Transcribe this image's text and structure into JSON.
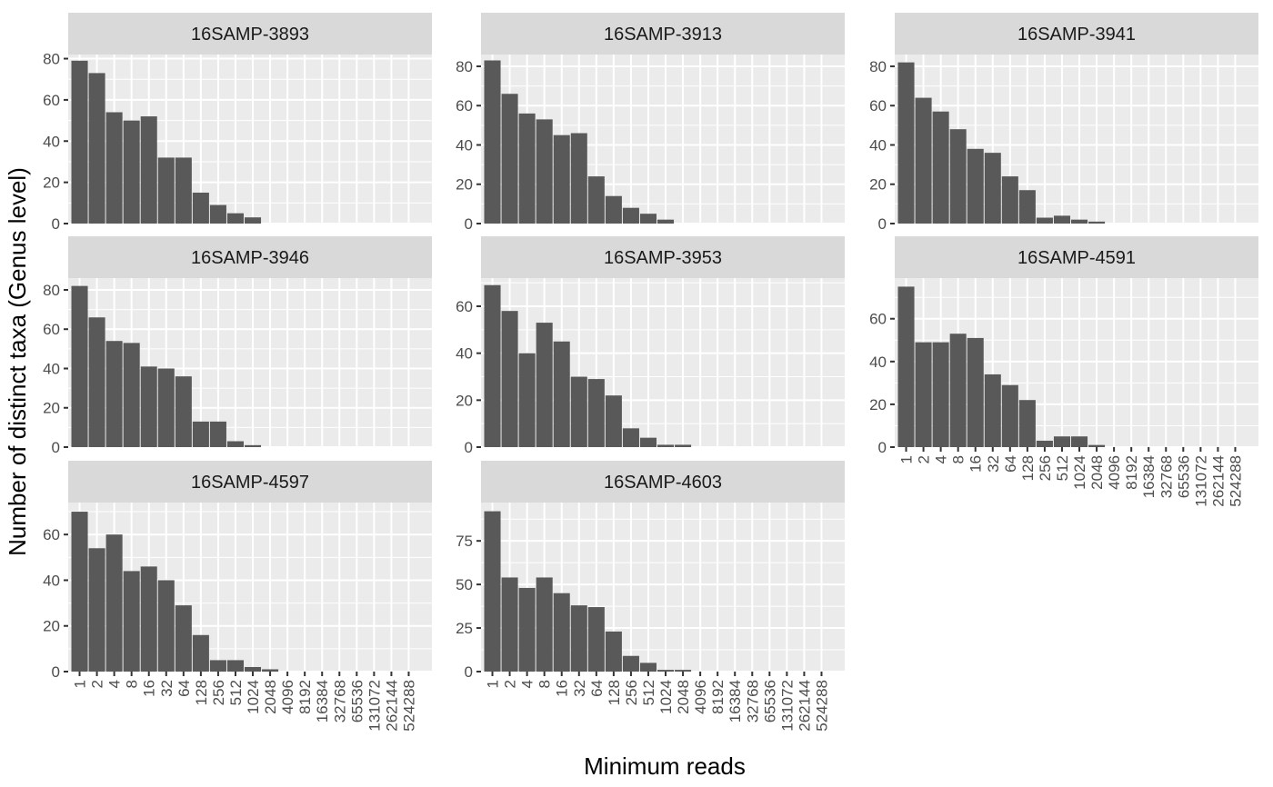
{
  "chart_data": {
    "type": "bar",
    "facet": true,
    "xlabel": "Minimum reads",
    "ylabel": "Number of distinct taxa (Genus level)",
    "categories": [
      "1",
      "2",
      "4",
      "8",
      "16",
      "32",
      "64",
      "128",
      "256",
      "512",
      "1024",
      "2048",
      "4096",
      "8192",
      "16384",
      "32768",
      "65536",
      "131072",
      "262144",
      "524288"
    ],
    "panels": [
      {
        "name": "16SAMP-3893",
        "values": [
          79,
          73,
          54,
          50,
          52,
          32,
          32,
          15,
          9,
          5,
          3,
          0,
          0,
          0,
          0,
          0,
          0,
          0,
          0,
          0
        ],
        "ylim": [
          0,
          82
        ],
        "yticks": [
          0,
          20,
          40,
          60,
          80
        ]
      },
      {
        "name": "16SAMP-3913",
        "values": [
          83,
          66,
          56,
          53,
          45,
          46,
          24,
          14,
          8,
          5,
          2,
          0,
          0,
          0,
          0,
          0,
          0,
          0,
          0,
          0
        ],
        "ylim": [
          0,
          86
        ],
        "yticks": [
          0,
          20,
          40,
          60,
          80
        ]
      },
      {
        "name": "16SAMP-3941",
        "values": [
          82,
          64,
          57,
          48,
          38,
          36,
          24,
          17,
          3,
          4,
          2,
          1,
          0,
          0,
          0,
          0,
          0,
          0,
          0,
          0
        ],
        "ylim": [
          0,
          86
        ],
        "yticks": [
          0,
          20,
          40,
          60,
          80
        ]
      },
      {
        "name": "16SAMP-3946",
        "values": [
          82,
          66,
          54,
          53,
          41,
          40,
          36,
          13,
          13,
          3,
          1,
          0,
          0,
          0,
          0,
          0,
          0,
          0,
          0,
          0
        ],
        "ylim": [
          0,
          86
        ],
        "yticks": [
          0,
          20,
          40,
          60,
          80
        ]
      },
      {
        "name": "16SAMP-3953",
        "values": [
          69,
          58,
          40,
          53,
          45,
          30,
          29,
          22,
          8,
          4,
          1,
          1,
          0,
          0,
          0,
          0,
          0,
          0,
          0,
          0
        ],
        "ylim": [
          0,
          72
        ],
        "yticks": [
          0,
          20,
          40,
          60
        ]
      },
      {
        "name": "16SAMP-4591",
        "values": [
          75,
          49,
          49,
          53,
          51,
          34,
          29,
          22,
          3,
          5,
          5,
          1,
          0,
          0,
          0,
          0,
          0,
          0,
          0,
          0
        ],
        "ylim": [
          0,
          79
        ],
        "yticks": [
          0,
          20,
          40,
          60
        ]
      },
      {
        "name": "16SAMP-4597",
        "values": [
          70,
          54,
          60,
          44,
          46,
          40,
          29,
          16,
          5,
          5,
          2,
          1,
          0,
          0,
          0,
          0,
          0,
          0,
          0,
          0
        ],
        "ylim": [
          0,
          74
        ],
        "yticks": [
          0,
          20,
          40,
          60
        ]
      },
      {
        "name": "16SAMP-4603",
        "values": [
          92,
          54,
          48,
          54,
          45,
          38,
          37,
          23,
          9,
          5,
          1,
          1,
          0,
          0,
          0,
          0,
          0,
          0,
          0,
          0
        ],
        "ylim": [
          0,
          97
        ],
        "yticks": [
          0,
          25,
          50,
          75
        ]
      }
    ]
  }
}
